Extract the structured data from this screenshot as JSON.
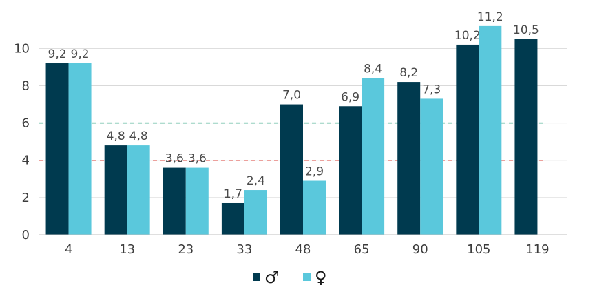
{
  "chart_data": {
    "type": "bar",
    "categories": [
      "4",
      "13",
      "23",
      "33",
      "48",
      "65",
      "90",
      "105",
      "119"
    ],
    "series": [
      {
        "name": "♂",
        "color": "#003a4f",
        "values": [
          9.2,
          4.8,
          3.6,
          1.7,
          7.0,
          6.9,
          8.2,
          10.2,
          10.5
        ],
        "labels": [
          "9,2",
          "4,8",
          "3,6",
          "1,7",
          "7,0",
          "6,9",
          "8,2",
          "10,2",
          "10,5"
        ]
      },
      {
        "name": "♀",
        "color": "#5ac8dc",
        "values": [
          9.2,
          4.8,
          3.6,
          2.4,
          2.9,
          8.4,
          7.3,
          11.2,
          null
        ],
        "labels": [
          "9,2",
          "4,8",
          "3,6",
          "2,4",
          "2,9",
          "8,4",
          "7,3",
          "11,2",
          ""
        ]
      }
    ],
    "ylim": [
      0,
      10.9
    ],
    "yticks": [
      "0",
      "2",
      "4",
      "6",
      "8",
      "10"
    ],
    "ytick_values": [
      0,
      2,
      4,
      6,
      8,
      10
    ],
    "reference_lines": [
      {
        "value": 6,
        "color": "#2aa37f"
      },
      {
        "value": 4,
        "color": "#d9413a"
      }
    ],
    "grid": true,
    "legend_position": "bottom-center",
    "title": "",
    "xlabel": "",
    "ylabel": ""
  }
}
